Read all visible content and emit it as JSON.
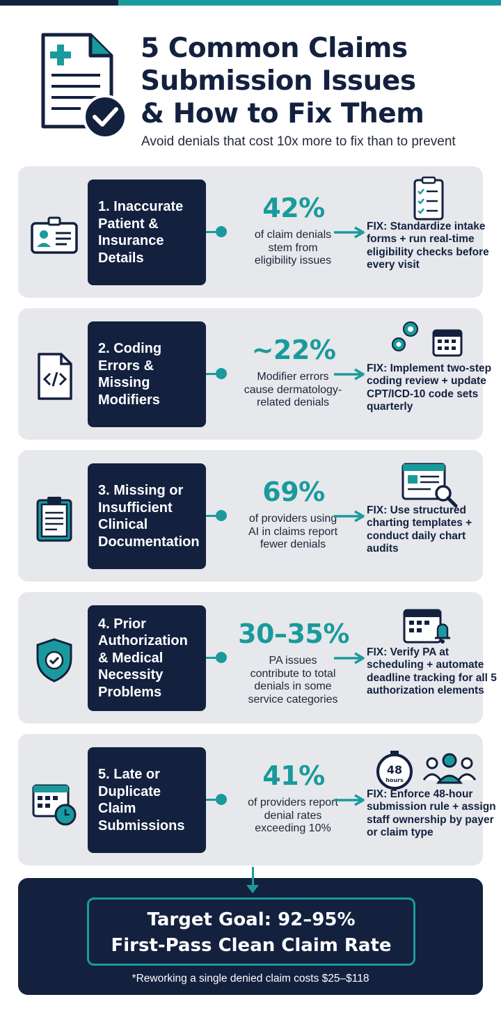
{
  "header": {
    "title_line1": "5 Common Claims",
    "title_line2": "Submission Issues",
    "title_line3": "& How to Fix Them",
    "subtitle": "Avoid denials that cost 10x more to fix than to prevent"
  },
  "cards": [
    {
      "issue": "1. Inaccurate\nPatient &\nInsurance\nDetails",
      "stat": "42%",
      "desc": "of claim denials\nstem from\neligibility issues",
      "fix_label": "FIX:",
      "fix": " Standardize intake forms + run real-time eligibility checks before every visit",
      "category_icon": "id-card-icon",
      "fix_icon": "checklist-icon"
    },
    {
      "issue": "2. Coding\nErrors &\nMissing\nModifiers",
      "stat": "~22%",
      "desc": "Modifier errors\ncause dermatology-\nrelated denials",
      "fix_label": "FIX:",
      "fix": " Implement two-step coding review + update CPT/ICD-10 code sets quarterly",
      "category_icon": "code-file-icon",
      "fix_icon": "gears-calendar-icon"
    },
    {
      "issue": "3. Missing or\nInsufficient\nClinical\nDocumentation",
      "stat": "69%",
      "desc": "of providers using\nAI in claims report\nfewer denials",
      "fix_label": "FIX:",
      "fix": " Use structured charting templates + conduct daily chart audits",
      "category_icon": "clipboard-icon",
      "fix_icon": "document-search-icon"
    },
    {
      "issue": "4. Prior\nAuthorization\n& Medical\nNecessity\nProblems",
      "stat": "30–35%",
      "desc": "PA issues\ncontribute to total\ndenials in some\nservice categories",
      "fix_label": "FIX:",
      "fix": " Verify PA at scheduling + automate deadline tracking for all 5 authorization elements",
      "category_icon": "shield-check-icon",
      "fix_icon": "calendar-bell-icon"
    },
    {
      "issue": "5. Late or\nDuplicate\nClaim\nSubmissions",
      "stat": "41%",
      "desc": "of providers report\ndenial rates\nexceeding 10%",
      "fix_label": "FIX:",
      "fix": " Enforce 48-hour submission rule + assign staff ownership by payer or claim type",
      "category_icon": "calendar-clock-icon",
      "fix_icon": "stopwatch-team-icon",
      "stopwatch_number": "48",
      "stopwatch_unit": "hours"
    }
  ],
  "goal": {
    "line1": "Target Goal: 92–95%",
    "line2": "First-Pass Clean Claim Rate",
    "note": "*Reworking a single denied claim costs $25–$118"
  },
  "colors": {
    "navy": "#13213f",
    "teal": "#1a9a9c",
    "card_bg": "#e6e8ec"
  }
}
